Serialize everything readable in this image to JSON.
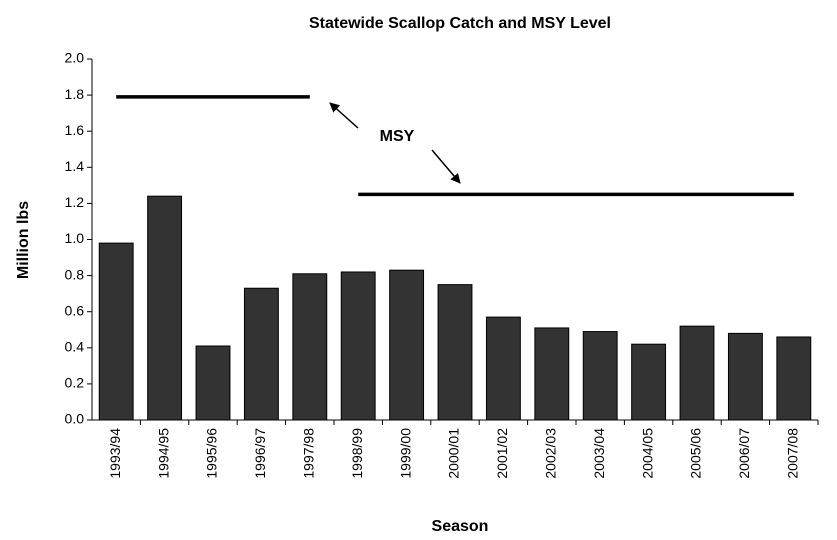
{
  "chart_data": {
    "type": "bar",
    "title": "Statewide Scallop Catch and MSY Level",
    "x_label": "Season",
    "y_label": "Million lbs",
    "categories": [
      "1993/94",
      "1994/95",
      "1995/96",
      "1996/97",
      "1997/98",
      "1998/99",
      "1999/00",
      "2000/01",
      "2001/02",
      "2002/03",
      "2003/04",
      "2004/05",
      "2005/06",
      "2006/07",
      "2007/08"
    ],
    "values": [
      0.98,
      1.24,
      0.41,
      0.73,
      0.81,
      0.82,
      0.83,
      0.75,
      0.57,
      0.51,
      0.49,
      0.42,
      0.52,
      0.48,
      0.46
    ],
    "color": "#333333",
    "msy_lines": [
      {
        "values": [
          1.79,
          1.79,
          1.79,
          1.79,
          1.79,
          null,
          null,
          null,
          null,
          null,
          null,
          null,
          null,
          null,
          null
        ]
      },
      {
        "values": [
          null,
          null,
          null,
          null,
          null,
          1.25,
          1.25,
          1.25,
          1.25,
          1.25,
          1.25,
          1.25,
          1.25,
          1.25,
          1.25
        ]
      }
    ],
    "annotation": "MSY",
    "ylim": [
      0,
      2
    ],
    "yticks": [
      {
        "value": 0,
        "label": "0.0"
      },
      {
        "value": 0.2,
        "label": "0.2"
      },
      {
        "value": 0.4,
        "label": "0.4"
      },
      {
        "value": 0.6,
        "label": "0.6"
      },
      {
        "value": 0.8,
        "label": "0.8"
      },
      {
        "value": 1,
        "label": "1.0"
      },
      {
        "value": 1.2,
        "label": "1.2"
      },
      {
        "value": 1.4,
        "label": "1.4"
      },
      {
        "value": 1.6,
        "label": "1.6"
      },
      {
        "value": 1.8,
        "label": "1.8"
      },
      {
        "value": 2,
        "label": "2.0"
      }
    ],
    "grid": false
  }
}
